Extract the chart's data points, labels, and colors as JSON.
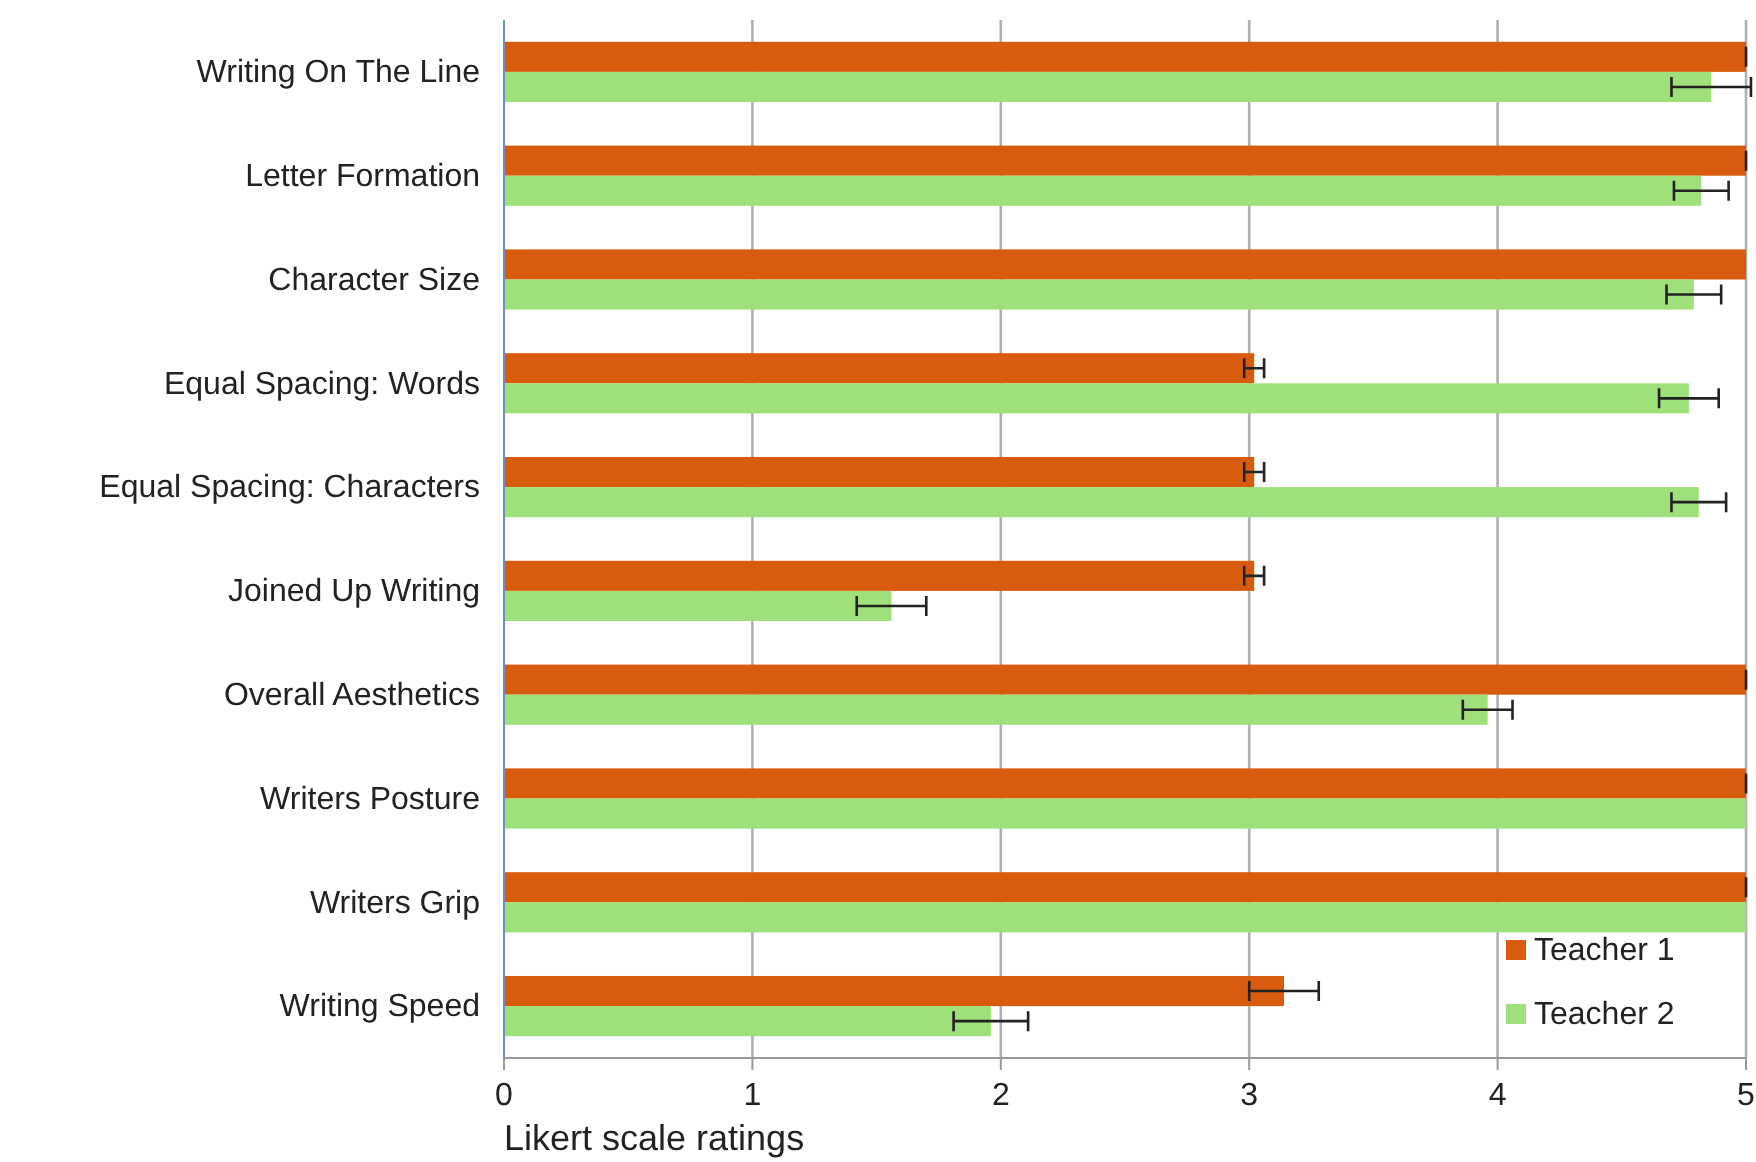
{
  "chart_data": {
    "type": "bar",
    "orientation": "horizontal",
    "xlabel": "Likert scale ratings",
    "categories": [
      "Writing On The Line",
      "Letter Formation",
      "Character Size",
      "Equal Spacing: Words",
      "Equal Spacing: Characters",
      "Joined Up Writing",
      "Overall Aesthetics",
      "Writers Posture",
      "Writers Grip",
      "Writing Speed"
    ],
    "series": [
      {
        "name": "Teacher 1",
        "color": "#d95b0e",
        "values": [
          5,
          5,
          5,
          3.02,
          3.02,
          3.02,
          5,
          5,
          5,
          3.14
        ],
        "errors": [
          0,
          0,
          null,
          0.04,
          0.04,
          0.04,
          0,
          0,
          0,
          0.14
        ]
      },
      {
        "name": "Teacher 2",
        "color": "#9ee07a",
        "values": [
          4.86,
          4.82,
          4.79,
          4.77,
          4.81,
          1.56,
          3.96,
          5,
          5,
          1.96
        ],
        "errors": [
          0.16,
          0.11,
          0.11,
          0.12,
          0.11,
          0.14,
          0.1,
          null,
          null,
          0.15
        ]
      }
    ],
    "xlim": [
      0,
      5
    ],
    "xticks": [
      0,
      1,
      2,
      3,
      4,
      5
    ],
    "grid": "x",
    "legend": "bottom right"
  }
}
